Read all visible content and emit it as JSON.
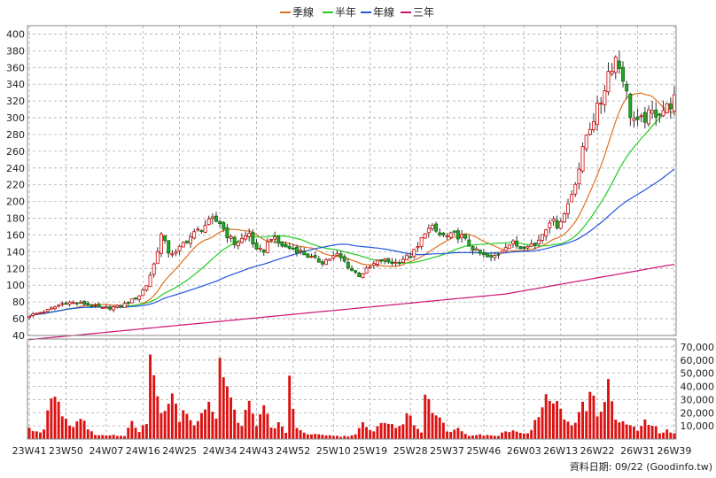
{
  "legend": [
    {
      "label": "季線",
      "color": "#e07020"
    },
    {
      "label": "半年",
      "color": "#22cc22"
    },
    {
      "label": "年線",
      "color": "#2255dd"
    },
    {
      "label": "三年",
      "color": "#cc1177"
    }
  ],
  "footer": "資料日期: 09/22  (Goodinfo.tw)",
  "chart_data": {
    "type": "candlestick+volume",
    "x_tick_labels": [
      "23W41",
      "23W50",
      "24W07",
      "24W16",
      "24W25",
      "24W34",
      "24W43",
      "24W52",
      "25W10",
      "25W19",
      "25W28",
      "25W37",
      "25W46",
      "26W03",
      "26W13",
      "26W22",
      "26W31",
      "26W39"
    ],
    "price_axis": {
      "ylim": [
        40,
        410
      ],
      "ticks": [
        40,
        60,
        80,
        100,
        120,
        140,
        160,
        180,
        200,
        220,
        240,
        260,
        280,
        300,
        320,
        340,
        360,
        380,
        400
      ]
    },
    "volume_axis": {
      "ylim": [
        0,
        76000
      ],
      "ticks": [
        10000,
        20000,
        30000,
        40000,
        50000,
        60000,
        70000
      ],
      "tick_labels": [
        "10,000",
        "20,000",
        "30,000",
        "40,000",
        "50,000",
        "60,000",
        "70,000"
      ]
    },
    "close_keypoints": [
      [
        0,
        64
      ],
      [
        5,
        70
      ],
      [
        10,
        80
      ],
      [
        15,
        78
      ],
      [
        20,
        72
      ],
      [
        25,
        75
      ],
      [
        28,
        82
      ],
      [
        30,
        88
      ],
      [
        32,
        100
      ],
      [
        34,
        125
      ],
      [
        36,
        160
      ],
      [
        38,
        140
      ],
      [
        40,
        138
      ],
      [
        42,
        150
      ],
      [
        44,
        158
      ],
      [
        46,
        165
      ],
      [
        48,
        172
      ],
      [
        50,
        178
      ],
      [
        52,
        175
      ],
      [
        54,
        160
      ],
      [
        56,
        150
      ],
      [
        58,
        155
      ],
      [
        60,
        162
      ],
      [
        62,
        140
      ],
      [
        64,
        142
      ],
      [
        66,
        158
      ],
      [
        68,
        150
      ],
      [
        70,
        145
      ],
      [
        72,
        144
      ],
      [
        74,
        140
      ],
      [
        76,
        135
      ],
      [
        78,
        130
      ],
      [
        80,
        128
      ],
      [
        82,
        132
      ],
      [
        84,
        136
      ],
      [
        86,
        128
      ],
      [
        88,
        118
      ],
      [
        90,
        112
      ],
      [
        92,
        118
      ],
      [
        94,
        125
      ],
      [
        96,
        130
      ],
      [
        98,
        128
      ],
      [
        100,
        127
      ],
      [
        102,
        132
      ],
      [
        104,
        135
      ],
      [
        106,
        145
      ],
      [
        108,
        165
      ],
      [
        110,
        168
      ],
      [
        112,
        160
      ],
      [
        114,
        158
      ],
      [
        116,
        160
      ],
      [
        118,
        158
      ],
      [
        120,
        148
      ],
      [
        122,
        140
      ],
      [
        124,
        135
      ],
      [
        126,
        132
      ],
      [
        128,
        138
      ],
      [
        130,
        148
      ],
      [
        132,
        150
      ],
      [
        134,
        145
      ],
      [
        136,
        150
      ],
      [
        138,
        148
      ],
      [
        140,
        162
      ],
      [
        142,
        178
      ],
      [
        144,
        172
      ],
      [
        146,
        185
      ],
      [
        148,
        210
      ],
      [
        150,
        240
      ],
      [
        152,
        280
      ],
      [
        154,
        300
      ],
      [
        156,
        320
      ],
      [
        158,
        355
      ],
      [
        160,
        372
      ],
      [
        162,
        350
      ],
      [
        164,
        305
      ],
      [
        166,
        292
      ],
      [
        168,
        300
      ],
      [
        170,
        305
      ],
      [
        172,
        308
      ],
      [
        174,
        312
      ],
      [
        176,
        322
      ]
    ],
    "volume_keypoints": [
      [
        0,
        8000
      ],
      [
        2,
        5000
      ],
      [
        4,
        7000
      ],
      [
        6,
        40000
      ],
      [
        8,
        28000
      ],
      [
        10,
        15000
      ],
      [
        12,
        9000
      ],
      [
        14,
        20000
      ],
      [
        16,
        6000
      ],
      [
        18,
        4000
      ],
      [
        20,
        3000
      ],
      [
        22,
        2500
      ],
      [
        24,
        3000
      ],
      [
        26,
        2000
      ],
      [
        28,
        15000
      ],
      [
        30,
        7000
      ],
      [
        32,
        14000
      ],
      [
        33,
        68000
      ],
      [
        35,
        30000
      ],
      [
        37,
        22000
      ],
      [
        39,
        40000
      ],
      [
        41,
        15000
      ],
      [
        43,
        22000
      ],
      [
        45,
        10000
      ],
      [
        47,
        16000
      ],
      [
        49,
        35000
      ],
      [
        51,
        15000
      ],
      [
        52,
        73000
      ],
      [
        54,
        35000
      ],
      [
        56,
        20000
      ],
      [
        58,
        12000
      ],
      [
        60,
        25000
      ],
      [
        62,
        9000
      ],
      [
        64,
        28000
      ],
      [
        66,
        8000
      ],
      [
        68,
        12000
      ],
      [
        70,
        4000
      ],
      [
        71,
        45000
      ],
      [
        73,
        10000
      ],
      [
        75,
        4000
      ],
      [
        77,
        3500
      ],
      [
        79,
        3000
      ],
      [
        81,
        2500
      ],
      [
        83,
        2500
      ],
      [
        85,
        2000
      ],
      [
        87,
        2500
      ],
      [
        89,
        3000
      ],
      [
        91,
        11000
      ],
      [
        93,
        6000
      ],
      [
        95,
        9000
      ],
      [
        97,
        14000
      ],
      [
        99,
        11000
      ],
      [
        101,
        8000
      ],
      [
        103,
        20000
      ],
      [
        105,
        11000
      ],
      [
        107,
        6000
      ],
      [
        108,
        36000
      ],
      [
        110,
        26000
      ],
      [
        112,
        16000
      ],
      [
        114,
        5000
      ],
      [
        116,
        9000
      ],
      [
        118,
        6000
      ],
      [
        120,
        3000
      ],
      [
        122,
        4000
      ],
      [
        124,
        3000
      ],
      [
        126,
        2500
      ],
      [
        128,
        3000
      ],
      [
        130,
        6000
      ],
      [
        132,
        8000
      ],
      [
        134,
        4000
      ],
      [
        136,
        5000
      ],
      [
        138,
        12000
      ],
      [
        140,
        22000
      ],
      [
        142,
        35000
      ],
      [
        144,
        25000
      ],
      [
        146,
        16000
      ],
      [
        148,
        12000
      ],
      [
        150,
        20000
      ],
      [
        152,
        26000
      ],
      [
        153,
        36000
      ],
      [
        155,
        18000
      ],
      [
        157,
        35000
      ],
      [
        158,
        38000
      ],
      [
        160,
        15000
      ],
      [
        162,
        13000
      ],
      [
        164,
        9000
      ],
      [
        166,
        7000
      ],
      [
        168,
        12000
      ],
      [
        170,
        11000
      ],
      [
        172,
        5000
      ],
      [
        174,
        6000
      ],
      [
        176,
        4000
      ]
    ]
  }
}
